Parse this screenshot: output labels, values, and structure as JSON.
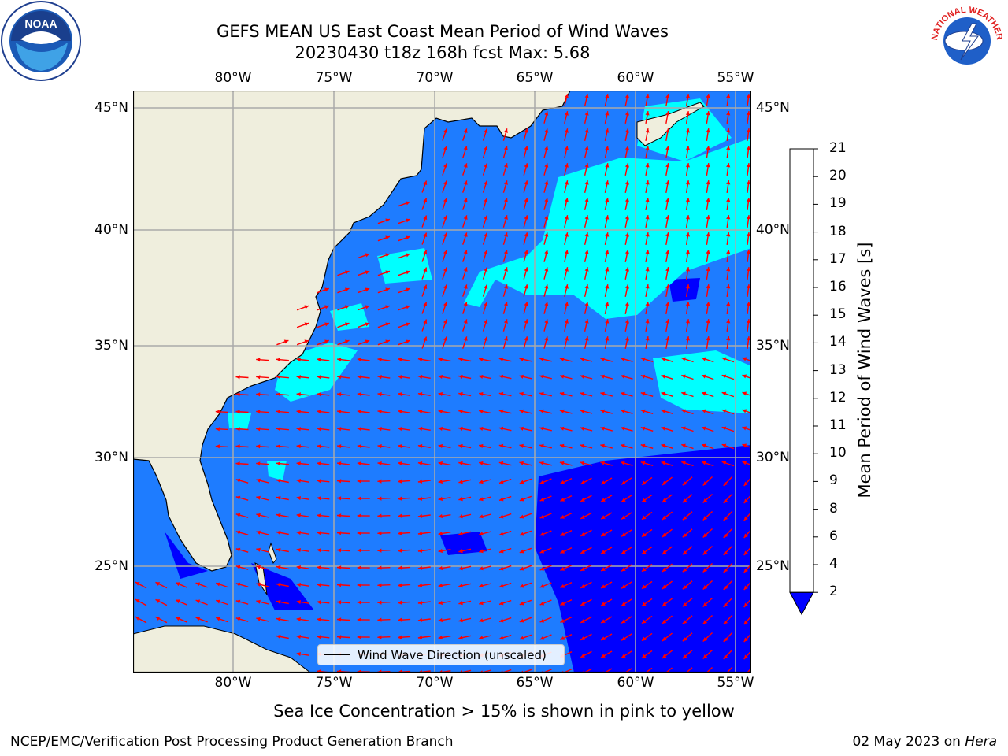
{
  "title": {
    "line1": "GEFS MEAN US East Coast Mean Period of Wind Waves",
    "line2": "20230430 t18z 168h fcst   Max: 5.68"
  },
  "axes": {
    "lon_labels": [
      "80°W",
      "75°W",
      "70°W",
      "65°W",
      "60°W",
      "55°W"
    ],
    "lat_labels": [
      "45°N",
      "40°N",
      "35°N",
      "30°N",
      "25°N"
    ]
  },
  "colorbar": {
    "label": "Mean Period of Wind Waves [s]",
    "ticks": [
      "2",
      "4",
      "6",
      "8",
      "9",
      "10",
      "11",
      "12",
      "13",
      "14",
      "15",
      "16",
      "17",
      "18",
      "19",
      "20",
      "21"
    ],
    "colors": [
      "#0000ff",
      "#1e7cff",
      "#00ffff",
      "#40ffff",
      "#99ffff",
      "#55ff80",
      "#11ee00",
      "#2edd00",
      "#99ee00",
      "#ccff00",
      "#e5ff00",
      "#ffff00",
      "#ffd700",
      "#ffb000",
      "#ff8c00",
      "#ff5500",
      "#ff2a00",
      "#ff0000"
    ]
  },
  "legend": {
    "label": "Wind Wave Direction (unscaled)"
  },
  "notes": {
    "sea_ice": "Sea Ice Concentration > 15% is shown in pink to yellow",
    "producer": "NCEP/EMC/Verification Post Processing Product Generation Branch",
    "date": "02 May 2023 on",
    "host": "Hera"
  },
  "logos": {
    "left": "NOAA",
    "right": "NATIONAL WEATHER SERVICE"
  },
  "colors": {
    "land": "#efeedd",
    "ocean": "#1e7cff",
    "low": "#0000ff",
    "high": "#00ffff",
    "arrow": "#ff0000",
    "grid": "#aaaaaa"
  }
}
